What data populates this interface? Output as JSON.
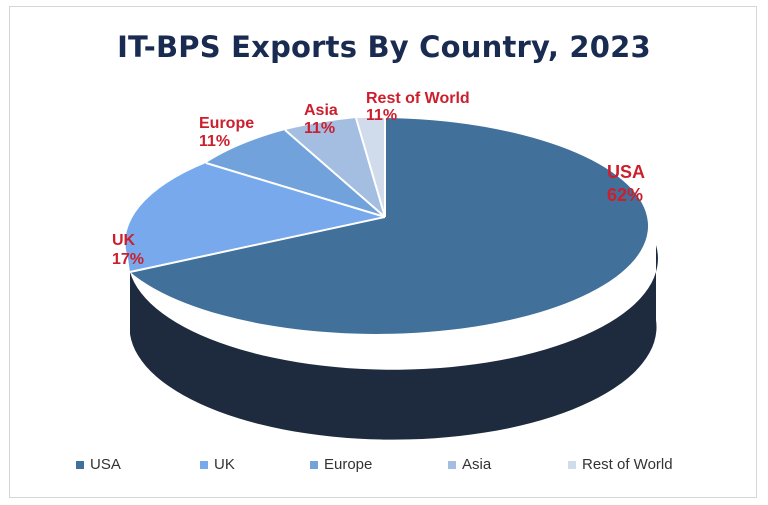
{
  "chart_data": {
    "type": "pie",
    "title": "IT-BPS Exports By Country, 2023",
    "categories": [
      "USA",
      "UK",
      "Europe",
      "Asia",
      "Rest of World"
    ],
    "values": [
      62,
      17,
      11,
      11,
      11
    ],
    "value_labels": [
      "62%",
      "17%",
      "11%",
      "11%",
      "11%"
    ],
    "colors": [
      "#41709b",
      "#77a9ec",
      "#71a2dc",
      "#a4bee1",
      "#d0dcec"
    ],
    "label_color": "#cc1f2d",
    "legend_position": "bottom"
  }
}
